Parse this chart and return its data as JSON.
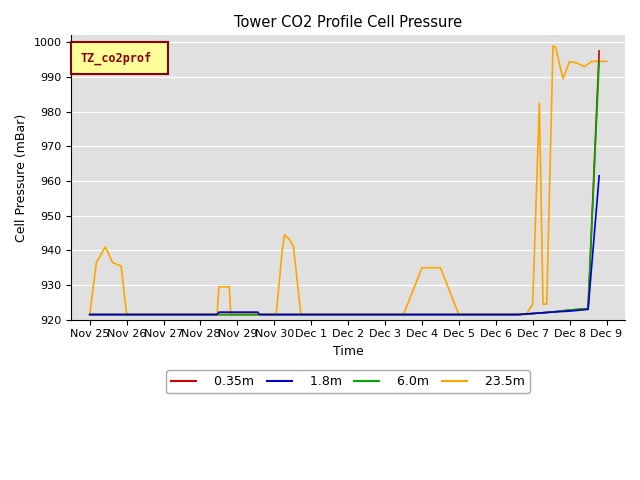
{
  "title": "Tower CO2 Profile Cell Pressure",
  "xlabel": "Time",
  "ylabel": "Cell Pressure (mBar)",
  "ylim": [
    920,
    1002
  ],
  "yticks": [
    920,
    930,
    940,
    950,
    960,
    970,
    980,
    990,
    1000
  ],
  "legend_label": "TZ_co2prof",
  "bg_color": "#e0e0e0",
  "fig_bg": "#ffffff",
  "xtick_labels": [
    "Nov 25",
    "Nov 26",
    "Nov 27",
    "Nov 28",
    "Nov 29",
    "Nov 30",
    "Dec 1",
    "Dec 2",
    "Dec 3",
    "Dec 4",
    "Dec 5",
    "Dec 6",
    "Dec 7",
    "Dec 8",
    "Dec 9"
  ],
  "colors": {
    "0.35m": "#cc0000",
    "1.8m": "#0000cc",
    "6.0m": "#00aa00",
    "23.5m": "#ffa500"
  },
  "orange_x": [
    0.0,
    0.18,
    0.42,
    0.62,
    0.85,
    1.0,
    1.18,
    1.42,
    1.68,
    1.9,
    2.0,
    2.5,
    3.0,
    3.45,
    3.5,
    3.78,
    3.82,
    4.0,
    4.2,
    4.38,
    4.42,
    4.58,
    4.62,
    4.78,
    4.82,
    5.0,
    5.05,
    5.22,
    5.28,
    5.42,
    5.52,
    5.72,
    5.75,
    6.0,
    6.5,
    7.0,
    7.5,
    8.0,
    8.5,
    9.0,
    9.5,
    10.0,
    10.5,
    11.0,
    11.02,
    11.08,
    11.22,
    11.28,
    11.38,
    11.42,
    11.45,
    11.52,
    11.62,
    11.72,
    11.82,
    12.0,
    12.18,
    12.28,
    12.38,
    12.55,
    12.62,
    12.72,
    12.82,
    13.0,
    13.2,
    13.4,
    13.6,
    13.8,
    14.0
  ],
  "orange_y": [
    921.5,
    936.5,
    941.0,
    936.5,
    935.5,
    921.5,
    921.5,
    921.5,
    921.5,
    921.5,
    921.5,
    921.5,
    921.5,
    921.5,
    929.5,
    929.5,
    921.5,
    921.5,
    921.5,
    921.5,
    921.5,
    921.5,
    921.5,
    921.5,
    921.5,
    921.5,
    921.5,
    940.5,
    944.5,
    943.0,
    941.0,
    921.5,
    921.5,
    921.5,
    921.5,
    921.5,
    921.5,
    921.5,
    921.5,
    935.0,
    935.0,
    921.5,
    921.5,
    921.5,
    921.5,
    921.5,
    921.5,
    921.5,
    921.5,
    921.5,
    921.5,
    921.5,
    921.5,
    921.5,
    921.5,
    924.5,
    982.5,
    924.5,
    924.5,
    999.0,
    998.5,
    994.0,
    989.5,
    994.5,
    994.0,
    993.0,
    994.5,
    994.5,
    994.5
  ],
  "red_x": [
    0.0,
    9.0,
    10.0,
    11.0,
    11.5,
    11.55,
    11.6,
    12.0,
    12.5,
    13.0,
    13.5,
    13.8
  ],
  "red_y": [
    921.5,
    921.5,
    921.5,
    921.5,
    921.5,
    921.5,
    921.5,
    921.8,
    922.2,
    922.8,
    923.2,
    997.5
  ],
  "blue_x": [
    0.0,
    3.45,
    3.5,
    4.55,
    4.6,
    4.78,
    4.82,
    9.0,
    11.0,
    11.5,
    11.55,
    11.6,
    12.0,
    12.5,
    13.0,
    13.5,
    13.8
  ],
  "blue_y": [
    921.5,
    921.5,
    922.2,
    922.2,
    921.5,
    921.5,
    921.5,
    921.5,
    921.5,
    921.5,
    921.5,
    921.5,
    921.8,
    922.2,
    922.5,
    923.0,
    961.5
  ],
  "green_x": [
    0.0,
    9.0,
    11.0,
    11.02,
    11.08,
    11.5,
    11.55,
    11.6,
    12.0,
    12.5,
    13.0,
    13.5,
    13.8
  ],
  "green_y": [
    921.5,
    921.5,
    921.5,
    921.5,
    921.5,
    921.5,
    921.5,
    921.5,
    921.8,
    922.2,
    922.8,
    923.2,
    994.5
  ]
}
